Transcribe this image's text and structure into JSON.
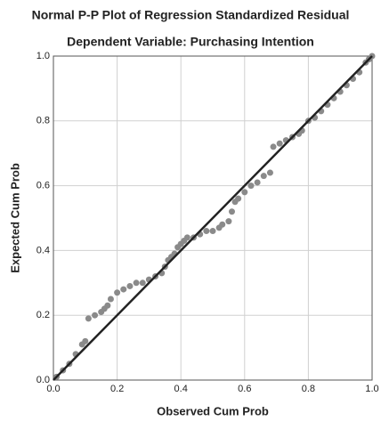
{
  "chart_data": {
    "type": "scatter",
    "title": "Normal P-P Plot of Regression Standardized Residual",
    "subtitle": "Dependent Variable: Purchasing Intention",
    "x_label": "Observed Cum Prob",
    "y_label": "Expected Cum Prob",
    "x": [
      0.01,
      0.03,
      0.05,
      0.07,
      0.09,
      0.1,
      0.11,
      0.13,
      0.15,
      0.16,
      0.17,
      0.18,
      0.2,
      0.22,
      0.24,
      0.26,
      0.28,
      0.3,
      0.32,
      0.34,
      0.35,
      0.36,
      0.37,
      0.38,
      0.39,
      0.4,
      0.41,
      0.42,
      0.44,
      0.46,
      0.48,
      0.5,
      0.52,
      0.53,
      0.55,
      0.56,
      0.57,
      0.58,
      0.6,
      0.62,
      0.64,
      0.66,
      0.68,
      0.69,
      0.71,
      0.73,
      0.75,
      0.77,
      0.78,
      0.8,
      0.82,
      0.84,
      0.86,
      0.88,
      0.9,
      0.92,
      0.94,
      0.96,
      0.98,
      0.99,
      1.0
    ],
    "y": [
      0.01,
      0.03,
      0.05,
      0.08,
      0.11,
      0.12,
      0.19,
      0.2,
      0.21,
      0.22,
      0.23,
      0.25,
      0.27,
      0.28,
      0.29,
      0.3,
      0.3,
      0.31,
      0.32,
      0.33,
      0.35,
      0.37,
      0.38,
      0.39,
      0.41,
      0.42,
      0.43,
      0.44,
      0.44,
      0.45,
      0.46,
      0.46,
      0.47,
      0.48,
      0.49,
      0.52,
      0.55,
      0.56,
      0.58,
      0.6,
      0.61,
      0.63,
      0.64,
      0.72,
      0.73,
      0.74,
      0.75,
      0.76,
      0.77,
      0.8,
      0.81,
      0.83,
      0.85,
      0.87,
      0.89,
      0.91,
      0.93,
      0.95,
      0.98,
      0.99,
      1.0
    ],
    "color": "#8a8a8a",
    "reference_line": {
      "x": [
        0,
        1
      ],
      "y": [
        0,
        1
      ],
      "color": "#222222"
    },
    "xlim": [
      0,
      1
    ],
    "ylim": [
      0,
      1
    ],
    "xticks": [
      {
        "value": 0,
        "label": "0.0"
      },
      0.2,
      0.4,
      0.6,
      0.8,
      {
        "value": 1,
        "label": "1.0"
      }
    ],
    "yticks": [
      {
        "value": 0,
        "label": "0.0"
      },
      0.2,
      0.4,
      0.6,
      0.8,
      {
        "value": 1,
        "label": "1.0"
      }
    ],
    "grid": true
  }
}
